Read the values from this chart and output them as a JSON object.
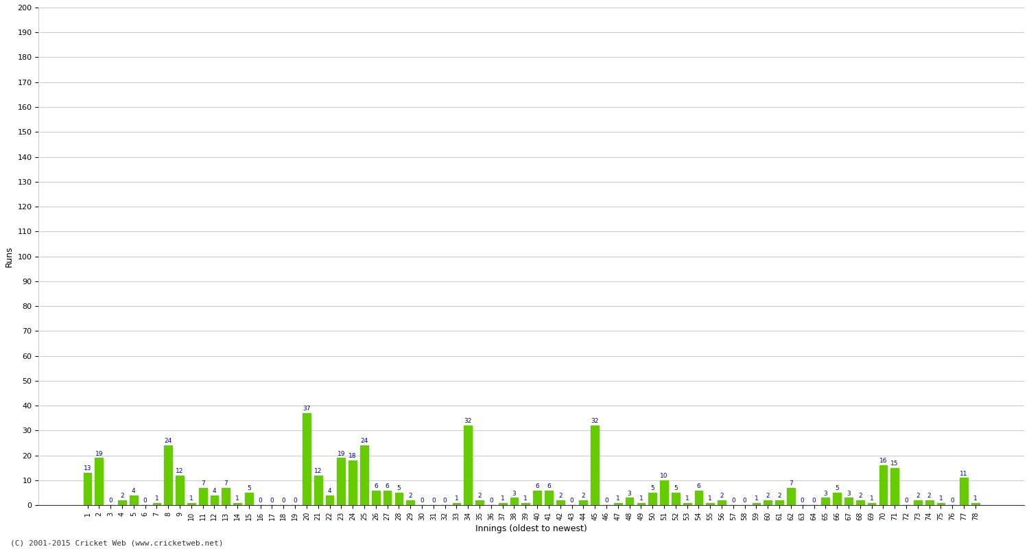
{
  "innings": [
    1,
    2,
    3,
    4,
    5,
    6,
    7,
    8,
    9,
    10,
    11,
    12,
    13,
    14,
    15,
    16,
    17,
    18,
    19,
    20,
    21,
    22,
    23,
    24,
    25,
    26,
    27,
    28,
    29,
    30,
    31,
    32,
    33,
    34,
    35,
    36,
    37,
    38,
    39,
    40,
    41,
    42,
    43,
    44,
    45,
    46,
    47,
    48,
    49,
    50,
    51,
    52,
    53,
    54,
    55,
    56,
    57,
    58,
    59,
    60,
    61,
    62,
    63,
    64,
    65,
    66,
    67,
    68,
    69,
    70,
    71,
    72,
    73,
    74,
    75,
    76,
    77,
    78
  ],
  "runs": [
    13,
    19,
    0,
    2,
    4,
    0,
    1,
    24,
    12,
    1,
    7,
    4,
    7,
    1,
    5,
    0,
    0,
    0,
    0,
    37,
    12,
    4,
    19,
    18,
    24,
    6,
    6,
    5,
    2,
    0,
    0,
    0,
    1,
    32,
    2,
    0,
    1,
    3,
    1,
    6,
    6,
    2,
    0,
    2,
    32,
    0,
    1,
    3,
    1,
    5,
    10,
    5,
    1,
    6,
    1,
    2,
    0,
    0,
    1,
    2,
    2,
    7,
    0,
    0,
    3,
    5,
    3,
    2,
    1,
    16,
    15,
    0,
    2,
    2,
    1,
    0,
    11,
    1
  ],
  "bar_color": "#66cc00",
  "value_color": "#000080",
  "bg_color": "#ffffff",
  "grid_color": "#cccccc",
  "ylabel": "Runs",
  "xlabel": "Innings (oldest to newest)",
  "footer": "(C) 2001-2015 Cricket Web (www.cricketweb.net)",
  "ylim": [
    0,
    200
  ],
  "yticks": [
    0,
    10,
    20,
    30,
    40,
    50,
    60,
    70,
    80,
    90,
    100,
    110,
    120,
    130,
    140,
    150,
    160,
    170,
    180,
    190,
    200
  ]
}
